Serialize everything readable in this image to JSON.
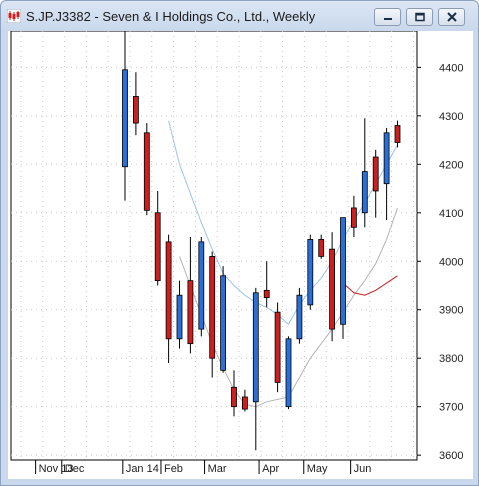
{
  "window": {
    "title": "S.JP.J3382 - Seven & I Holdings Co., Ltd., Weekly",
    "icon": "candlestick-chart-icon",
    "controls": [
      "minimize-icon",
      "restore-icon",
      "close-icon"
    ]
  },
  "chart_data": {
    "type": "candlestick",
    "title": "S.JP.J3382 - Seven & I Holdings Co., Ltd., Weekly",
    "y_ticks": [
      3600,
      3700,
      3800,
      3900,
      4000,
      4100,
      4200,
      4300,
      4400
    ],
    "ylim": [
      3590,
      4475
    ],
    "x_ticks": [
      {
        "label": "Nov 13",
        "index": -8.2
      },
      {
        "label": "Dec",
        "index": -5.8
      },
      {
        "label": "Jan 14",
        "index": -0.2
      },
      {
        "label": "Feb",
        "index": 3.3
      },
      {
        "label": "Mar",
        "index": 7.3
      },
      {
        "label": "Apr",
        "index": 12.3
      },
      {
        "label": "May",
        "index": 16.4
      },
      {
        "label": "Jun",
        "index": 20.7
      }
    ],
    "colors": {
      "up": "#2a6fd8",
      "down": "#cc1f1f",
      "ma_short": "#9ec3ea",
      "ma_mid": "#b5b5b5",
      "ma_long": "#cc1f1f",
      "grid": "#c9c9c9"
    },
    "grid": true,
    "candles": [
      {
        "o": 4195,
        "h": 4480,
        "l": 4125,
        "c": 4395
      },
      {
        "o": 4340,
        "h": 4390,
        "l": 4260,
        "c": 4285
      },
      {
        "o": 4265,
        "h": 4285,
        "l": 4095,
        "c": 4105
      },
      {
        "o": 4100,
        "h": 4145,
        "l": 3950,
        "c": 3960
      },
      {
        "o": 4040,
        "h": 4055,
        "l": 3790,
        "c": 3840
      },
      {
        "o": 3840,
        "h": 3960,
        "l": 3820,
        "c": 3930
      },
      {
        "o": 3960,
        "h": 4050,
        "l": 3810,
        "c": 3830
      },
      {
        "o": 3860,
        "h": 4050,
        "l": 3845,
        "c": 4040
      },
      {
        "o": 4010,
        "h": 4020,
        "l": 3760,
        "c": 3800
      },
      {
        "o": 3775,
        "h": 3990,
        "l": 3770,
        "c": 3970
      },
      {
        "o": 3740,
        "h": 3775,
        "l": 3680,
        "c": 3700
      },
      {
        "o": 3720,
        "h": 3735,
        "l": 3690,
        "c": 3695
      },
      {
        "o": 3710,
        "h": 3945,
        "l": 3610,
        "c": 3935
      },
      {
        "o": 3940,
        "h": 4000,
        "l": 3905,
        "c": 3925
      },
      {
        "o": 3895,
        "h": 3915,
        "l": 3730,
        "c": 3750
      },
      {
        "o": 3700,
        "h": 3845,
        "l": 3695,
        "c": 3840
      },
      {
        "o": 3840,
        "h": 3945,
        "l": 3830,
        "c": 3930
      },
      {
        "o": 3910,
        "h": 4055,
        "l": 3900,
        "c": 4045
      },
      {
        "o": 4045,
        "h": 4055,
        "l": 4005,
        "c": 4010
      },
      {
        "o": 4025,
        "h": 4060,
        "l": 3835,
        "c": 3860
      },
      {
        "o": 3870,
        "h": 4090,
        "l": 3840,
        "c": 4090
      },
      {
        "o": 4110,
        "h": 4135,
        "l": 4050,
        "c": 4070
      },
      {
        "o": 4100,
        "h": 4295,
        "l": 4070,
        "c": 4185
      },
      {
        "o": 4215,
        "h": 4230,
        "l": 4090,
        "c": 4145
      },
      {
        "o": 4160,
        "h": 4275,
        "l": 4085,
        "c": 4265
      },
      {
        "o": 4280,
        "h": 4290,
        "l": 4235,
        "c": 4245
      }
    ],
    "ma_short": [
      [
        4,
        4290
      ],
      [
        5,
        4200
      ],
      [
        6,
        4140
      ],
      [
        7,
        4080
      ],
      [
        8,
        4025
      ],
      [
        9,
        3975
      ],
      [
        10,
        3950
      ],
      [
        11,
        3930
      ],
      [
        12,
        3915
      ],
      [
        13,
        3905
      ],
      [
        14,
        3890
      ],
      [
        15,
        3870
      ],
      [
        16,
        3910
      ],
      [
        17,
        3940
      ],
      [
        18,
        3965
      ],
      [
        19,
        4000
      ],
      [
        20,
        4045
      ],
      [
        21,
        4085
      ],
      [
        22,
        4120
      ],
      [
        23,
        4160
      ],
      [
        24,
        4200
      ],
      [
        25,
        4240
      ]
    ],
    "ma_mid": [
      [
        5,
        4010
      ],
      [
        6,
        3950
      ],
      [
        7,
        3890
      ],
      [
        8,
        3830
      ],
      [
        9,
        3780
      ],
      [
        10,
        3735
      ],
      [
        11,
        3705
      ],
      [
        12,
        3700
      ],
      [
        13,
        3710
      ],
      [
        14,
        3715
      ],
      [
        15,
        3720
      ],
      [
        16,
        3760
      ],
      [
        17,
        3800
      ],
      [
        18,
        3830
      ],
      [
        19,
        3860
      ],
      [
        20,
        3895
      ],
      [
        21,
        3930
      ],
      [
        22,
        3960
      ],
      [
        23,
        3995
      ],
      [
        24,
        4045
      ],
      [
        25,
        4110
      ]
    ],
    "ma_long": [
      [
        20,
        3955
      ],
      [
        21,
        3935
      ],
      [
        22,
        3930
      ],
      [
        23,
        3940
      ],
      [
        24,
        3955
      ],
      [
        25,
        3970
      ]
    ]
  }
}
